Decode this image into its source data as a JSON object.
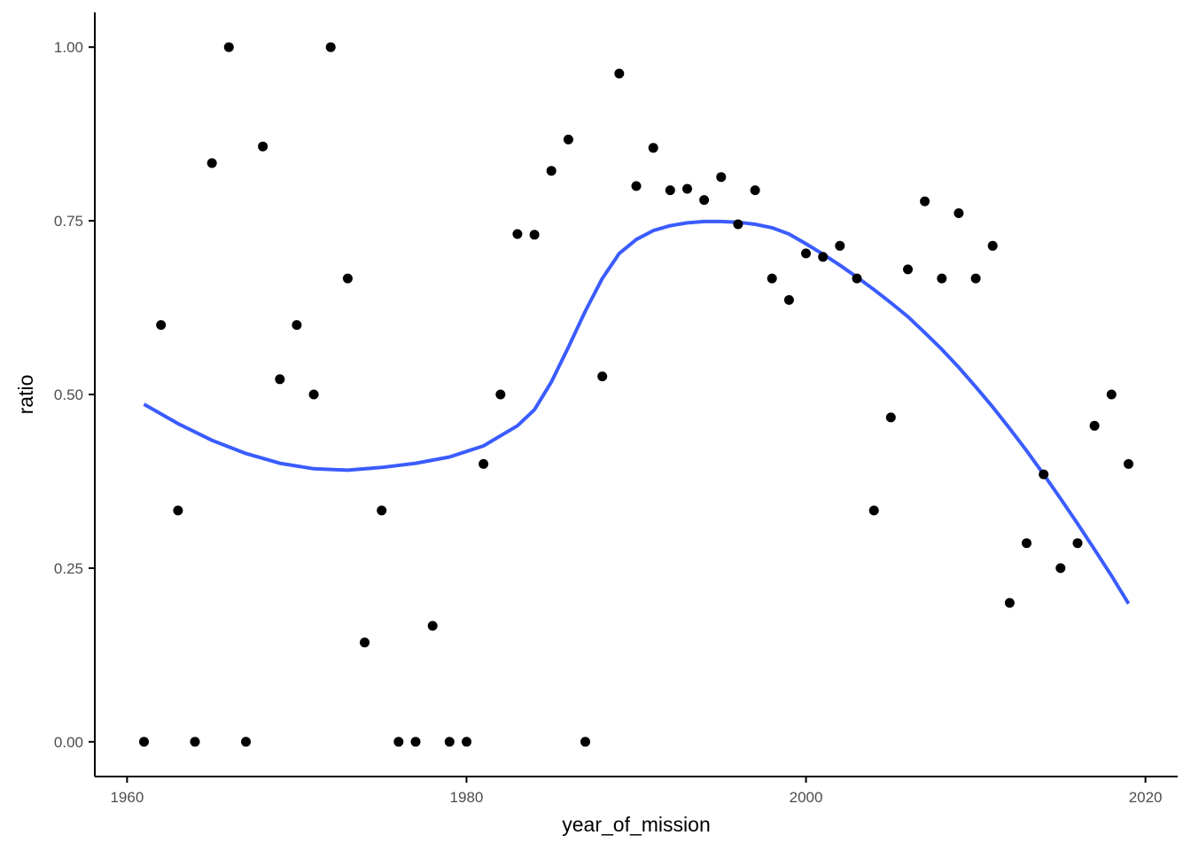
{
  "chart_data": {
    "type": "scatter",
    "title": "",
    "xlabel": "year_of_mission",
    "ylabel": "ratio",
    "xlim": [
      1958.1,
      2021.9
    ],
    "ylim": [
      -0.05,
      1.05
    ],
    "grid": false,
    "x_ticks": [
      1960,
      1980,
      2000,
      2020
    ],
    "x_tick_labels": [
      "1960",
      "1980",
      "2000",
      "2020"
    ],
    "y_ticks": [
      0,
      0.25,
      0.5,
      0.75,
      1.0
    ],
    "y_tick_labels": [
      "0.00",
      "0.25",
      "0.50",
      "0.75",
      "1.00"
    ],
    "point_color": "#000000",
    "trend_color": "#3a5cff",
    "points": {
      "x": [
        1961,
        1962,
        1963,
        1964,
        1965,
        1966,
        1967,
        1968,
        1969,
        1970,
        1971,
        1972,
        1973,
        1974,
        1975,
        1976,
        1977,
        1978,
        1979,
        1980,
        1981,
        1982,
        1983,
        1984,
        1985,
        1986,
        1987,
        1988,
        1989,
        1990,
        1991,
        1992,
        1993,
        1994,
        1995,
        1996,
        1997,
        1998,
        1999,
        2000,
        2001,
        2002,
        2003,
        2004,
        2005,
        2006,
        2007,
        2008,
        2009,
        2010,
        2011,
        2012,
        2013,
        2014,
        2015,
        2016,
        2017,
        2018,
        2019
      ],
      "y": [
        0.0,
        0.6,
        0.333,
        0.0,
        0.833,
        1.0,
        0.0,
        0.857,
        0.522,
        0.6,
        0.5,
        1.0,
        0.667,
        0.143,
        0.333,
        0.0,
        0.0,
        0.167,
        0.0,
        0.0,
        0.4,
        0.5,
        0.731,
        0.73,
        0.822,
        0.867,
        0.0,
        0.526,
        0.962,
        0.8,
        0.855,
        0.794,
        0.796,
        0.78,
        0.813,
        0.745,
        0.794,
        0.667,
        0.636,
        0.703,
        0.698,
        0.714,
        0.667,
        0.333,
        0.467,
        0.68,
        0.778,
        0.667,
        0.761,
        0.667,
        0.714,
        0.2,
        0.286,
        0.385,
        0.25,
        0.286,
        0.455,
        0.5,
        0.4
      ]
    },
    "trend": {
      "x": [
        1961,
        1963,
        1965,
        1967,
        1969,
        1971,
        1973,
        1975,
        1977,
        1979,
        1981,
        1983,
        1984,
        1985,
        1986,
        1987,
        1988,
        1989,
        1990,
        1991,
        1992,
        1993,
        1994,
        1995,
        1996,
        1997,
        1998,
        1999,
        2000,
        2001,
        2002,
        2003,
        2004,
        2005,
        2006,
        2007,
        2008,
        2009,
        2010,
        2011,
        2012,
        2013,
        2014,
        2015,
        2016,
        2017,
        2018,
        2019
      ],
      "y": [
        0.486,
        0.458,
        0.434,
        0.415,
        0.401,
        0.393,
        0.391,
        0.395,
        0.401,
        0.41,
        0.426,
        0.455,
        0.478,
        0.518,
        0.568,
        0.62,
        0.667,
        0.703,
        0.723,
        0.736,
        0.743,
        0.747,
        0.749,
        0.749,
        0.748,
        0.745,
        0.74,
        0.731,
        0.717,
        0.702,
        0.686,
        0.669,
        0.651,
        0.632,
        0.612,
        0.589,
        0.565,
        0.539,
        0.511,
        0.482,
        0.451,
        0.419,
        0.385,
        0.35,
        0.314,
        0.277,
        0.239,
        0.199
      ]
    }
  }
}
